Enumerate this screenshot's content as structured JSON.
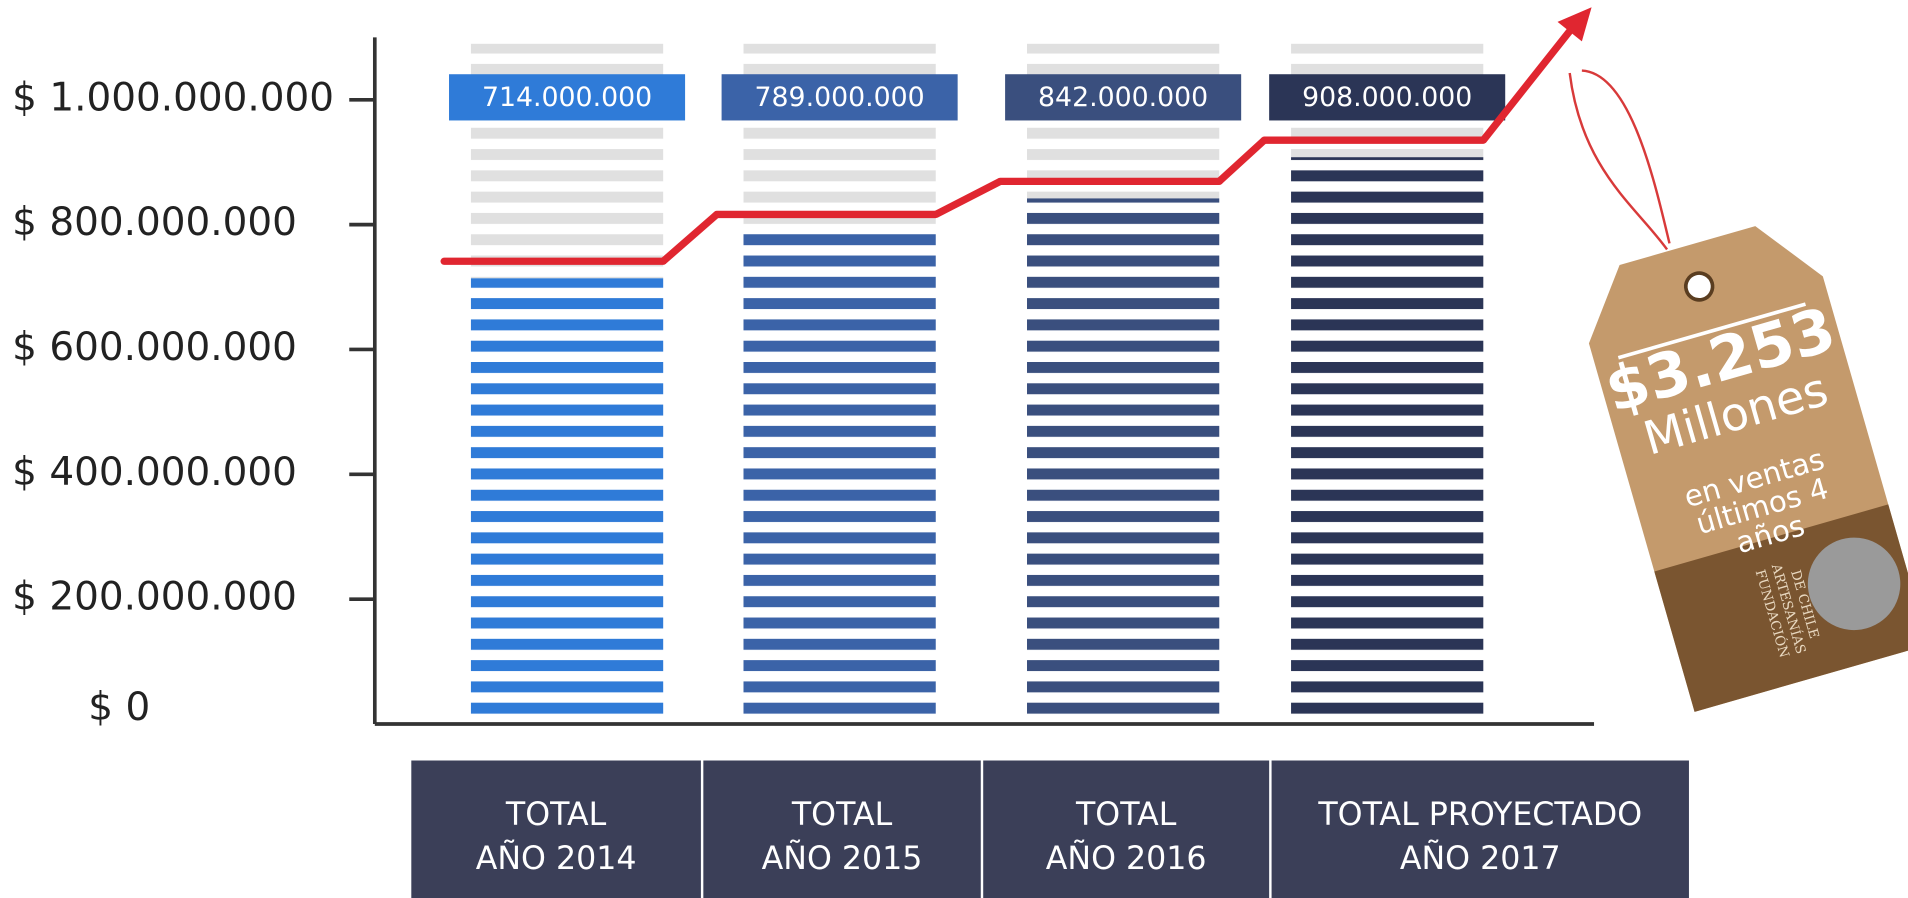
{
  "chart_data": {
    "type": "bar",
    "categories": [
      "TOTAL\nAÑO 2014",
      "TOTAL\nAÑO 2015",
      "TOTAL\nAÑO 2016",
      "TOTAL PROYECTADO\nAÑO 2017"
    ],
    "values": [
      714000000,
      789000000,
      842000000,
      908000000
    ],
    "value_labels": [
      "714.000.000",
      "789.000.000",
      "842.000.000",
      "908.000.000"
    ],
    "colors": [
      "#2f7bd8",
      "#3b63a8",
      "#3a4f7e",
      "#2b3556"
    ],
    "ylim": [
      0,
      1100000000
    ],
    "yticks": [
      {
        "value": 0,
        "label": "$ 0"
      },
      {
        "value": 200000000,
        "label": "$ 200.000.000"
      },
      {
        "value": 400000000,
        "label": "$ 400.000.000"
      },
      {
        "value": 600000000,
        "label": "$ 600.000.000"
      },
      {
        "value": 800000000,
        "label": "$ 800.000.000"
      },
      {
        "value": 1000000000,
        "label": "$ 1.000.000.000"
      }
    ],
    "trend_color": "#e02630",
    "tag_amount": "$3.253",
    "tag_lines": [
      "Millones",
      "en ventas",
      "últimos 4",
      "años"
    ],
    "tag_logo": [
      "FUNDACIÓN",
      "ARTESANÍAS",
      "DE CHILE"
    ]
  }
}
